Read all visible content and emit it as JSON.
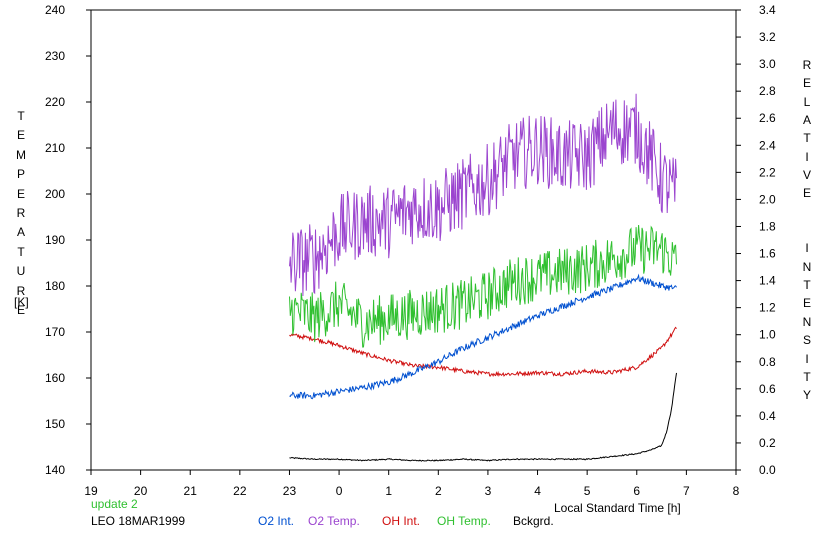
{
  "chart_data": {
    "type": "line",
    "title": "",
    "xlabel": "Local Standard Time [h]",
    "ylabel_left": "TEMPERATURE",
    "ylabel_left_unit": "[K]",
    "ylabel_right": "RELATIVE  INTENSITY",
    "xlim": [
      19,
      32
    ],
    "x_tick_values": [
      19,
      20,
      21,
      22,
      23,
      24,
      25,
      26,
      27,
      28,
      29,
      30,
      31,
      32
    ],
    "x_tick_labels": [
      "19",
      "20",
      "21",
      "22",
      "23",
      "0",
      "1",
      "2",
      "3",
      "4",
      "5",
      "6",
      "7",
      "8"
    ],
    "ylim_left": [
      140,
      240
    ],
    "y_ticks_left": [
      "140",
      "150",
      "160",
      "170",
      "180",
      "190",
      "200",
      "210",
      "220",
      "230",
      "240"
    ],
    "ylim_right": [
      0.0,
      3.4
    ],
    "y_ticks_right": [
      "0.0",
      "0.2",
      "0.4",
      "0.6",
      "0.8",
      "1.0",
      "1.2",
      "1.4",
      "1.6",
      "1.8",
      "2.0",
      "2.2",
      "2.4",
      "2.6",
      "2.8",
      "3.0",
      "3.2",
      "3.4"
    ],
    "grid": false,
    "legend_position": "bottom",
    "series": [
      {
        "name": "O2 Int.",
        "color": "#0050d0",
        "axis": "right",
        "noise": 0.025,
        "x": [
          23.0,
          23.5,
          24.0,
          24.5,
          25.0,
          25.5,
          26.0,
          26.5,
          27.0,
          27.5,
          28.0,
          28.5,
          29.0,
          29.5,
          30.0,
          30.5,
          30.8
        ],
        "y": [
          0.55,
          0.55,
          0.58,
          0.61,
          0.65,
          0.72,
          0.8,
          0.9,
          0.98,
          1.06,
          1.14,
          1.21,
          1.28,
          1.34,
          1.42,
          1.36,
          1.34
        ]
      },
      {
        "name": "O2 Temp.",
        "color": "#9b45cf",
        "axis": "left",
        "noise": 8,
        "x": [
          23.0,
          23.5,
          24.0,
          24.5,
          25.0,
          25.5,
          26.0,
          26.5,
          27.0,
          27.5,
          28.0,
          28.5,
          29.0,
          29.5,
          30.0,
          30.5,
          30.8
        ],
        "y": [
          185,
          186,
          192,
          194,
          194,
          197,
          197,
          200,
          203,
          208,
          210,
          208,
          208,
          214,
          214,
          203,
          200
        ]
      },
      {
        "name": "OH Int.",
        "color": "#d01010",
        "axis": "right",
        "noise": 0.015,
        "x": [
          23.0,
          23.5,
          24.0,
          24.5,
          25.0,
          25.5,
          26.0,
          26.5,
          27.0,
          27.5,
          28.0,
          28.5,
          29.0,
          29.5,
          30.0,
          30.5,
          30.8
        ],
        "y": [
          1.0,
          0.97,
          0.92,
          0.86,
          0.81,
          0.77,
          0.76,
          0.73,
          0.71,
          0.71,
          0.72,
          0.71,
          0.73,
          0.72,
          0.76,
          0.9,
          1.05
        ]
      },
      {
        "name": "OH Temp.",
        "color": "#30c030",
        "axis": "left",
        "noise": 5.5,
        "x": [
          23.0,
          23.5,
          24.0,
          24.5,
          25.0,
          25.5,
          26.0,
          26.5,
          27.0,
          27.5,
          28.0,
          28.5,
          29.0,
          29.5,
          30.0,
          30.5,
          30.8
        ],
        "y": [
          175,
          173,
          176,
          172,
          173,
          174,
          175,
          176,
          178,
          181,
          182,
          183,
          184,
          186,
          188,
          188,
          185
        ]
      },
      {
        "name": "Bckgrd.",
        "color": "#000000",
        "axis": "right",
        "noise": 0.004,
        "x": [
          23.0,
          23.5,
          24.0,
          24.5,
          25.0,
          25.5,
          26.0,
          26.5,
          27.0,
          27.5,
          28.0,
          28.5,
          29.0,
          29.5,
          30.0,
          30.3,
          30.5,
          30.6,
          30.7,
          30.8
        ],
        "y": [
          0.09,
          0.08,
          0.08,
          0.07,
          0.08,
          0.07,
          0.07,
          0.08,
          0.07,
          0.08,
          0.08,
          0.08,
          0.08,
          0.1,
          0.12,
          0.15,
          0.18,
          0.28,
          0.45,
          0.72
        ]
      }
    ]
  },
  "footer": {
    "update_label": "update 2",
    "station_date": "LEO 18MAR1999",
    "update_color": "#30c030"
  }
}
